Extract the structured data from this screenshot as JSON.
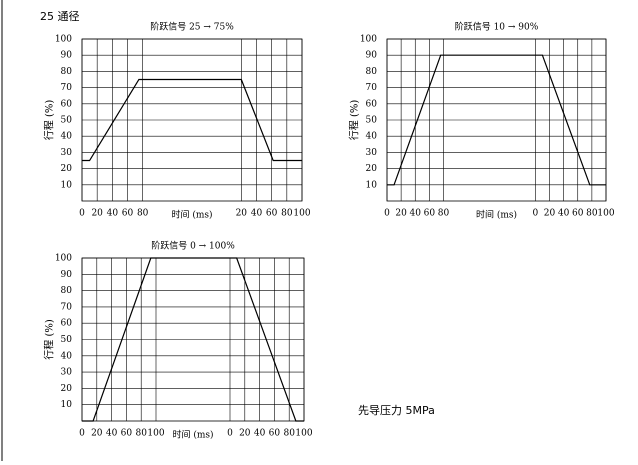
{
  "header": "25 通径",
  "note": "先导压力 5MPa",
  "chart_data": [
    {
      "type": "line",
      "title": "阶跃信号 25 → 75%",
      "xlabel": "时间 (ms)",
      "ylabel": "行程 (%)",
      "x": [
        0,
        10,
        75,
        210,
        252,
        290
      ],
      "values": [
        25,
        25,
        75,
        75,
        25,
        25
      ],
      "color": "#000000",
      "xlim": [
        0,
        290
      ],
      "xticks": [
        0,
        20,
        40,
        60,
        80,
        {
          "value": 210,
          "label": "20"
        },
        {
          "value": 230,
          "label": "40"
        },
        {
          "value": 250,
          "label": "60"
        },
        {
          "value": 270,
          "label": "80"
        },
        {
          "value": 290,
          "label": "100"
        }
      ],
      "ylim": [
        0,
        100
      ],
      "yticks": [
        10,
        20,
        30,
        40,
        50,
        60,
        70,
        80,
        90,
        100
      ],
      "grid": true
    },
    {
      "type": "line",
      "title": "阶跃信号 10 → 90%",
      "xlabel": "时间 (ms)",
      "ylabel": "行程 (%)",
      "x": [
        0,
        10,
        76,
        220,
        287,
        310
      ],
      "values": [
        10,
        10,
        90,
        90,
        10,
        10
      ],
      "color": "#000000",
      "xlim": [
        0,
        310
      ],
      "xticks": [
        0,
        20,
        40,
        60,
        80,
        {
          "value": 210,
          "label": "0"
        },
        {
          "value": 230,
          "label": "20"
        },
        {
          "value": 250,
          "label": "40"
        },
        {
          "value": 270,
          "label": "60"
        },
        {
          "value": 290,
          "label": "80"
        },
        {
          "value": 310,
          "label": "100"
        }
      ],
      "ylim": [
        0,
        100
      ],
      "yticks": [
        10,
        20,
        30,
        40,
        50,
        60,
        70,
        80,
        90,
        100
      ],
      "grid": true
    },
    {
      "type": "line",
      "title": "阶跃信号 0 → 100%",
      "xlabel": "时间 (ms)",
      "ylabel": "行程 (%)",
      "x": [
        0,
        15,
        93,
        209,
        289,
        300
      ],
      "values": [
        0,
        0,
        100,
        100,
        0,
        0
      ],
      "color": "#000000",
      "xlim": [
        0,
        300
      ],
      "xticks": [
        0,
        20,
        40,
        60,
        80,
        100,
        {
          "value": 200,
          "label": "0"
        },
        {
          "value": 220,
          "label": "20"
        },
        {
          "value": 240,
          "label": "40"
        },
        {
          "value": 260,
          "label": "60"
        },
        {
          "value": 280,
          "label": "80"
        },
        {
          "value": 300,
          "label": "100"
        }
      ],
      "ylim": [
        0,
        100
      ],
      "yticks": [
        10,
        20,
        30,
        40,
        50,
        60,
        70,
        80,
        90,
        100
      ],
      "grid": true
    }
  ]
}
